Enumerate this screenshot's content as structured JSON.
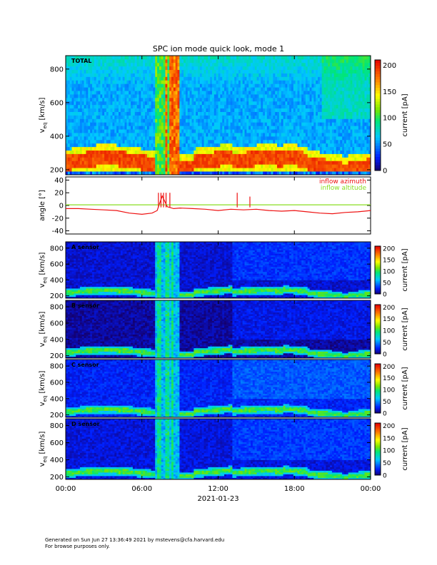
{
  "chart_data": [
    {
      "type": "heatmap",
      "title": "SPC ion mode quick look, mode 1",
      "panel_label": "TOTAL",
      "ylabel_main": "v",
      "ylabel_sub": "eq",
      "ylabel_unit": "[km/s]",
      "yticks": [
        200,
        400,
        600,
        800
      ],
      "ylim": [
        170,
        880
      ],
      "colorbar": {
        "label": "current [pA]",
        "ticks": [
          0,
          50,
          100,
          150,
          200
        ],
        "range": [
          0,
          210
        ]
      },
      "x_range_hours": [
        0,
        24
      ]
    },
    {
      "type": "line",
      "ylabel": "angle [°]",
      "yticks": [
        -40,
        -20,
        0,
        20,
        40
      ],
      "ylim": [
        -45,
        45
      ],
      "legend_placement": "top-right",
      "series": [
        {
          "name": "inflow azimuth",
          "color": "#ee1111",
          "x_hours": [
            0,
            1,
            2,
            3,
            4,
            5,
            6,
            6.8,
            7.2,
            7.6,
            8.0,
            8.5,
            9,
            10,
            11,
            12,
            13,
            14,
            15,
            16,
            17,
            18,
            19,
            20,
            21,
            22,
            23,
            24
          ],
          "y": [
            -5,
            -5,
            -6,
            -7,
            -8,
            -12,
            -14,
            -12,
            -8,
            15,
            -2,
            -5,
            -4,
            -5,
            -6,
            -8,
            -6,
            -7,
            -6,
            -8,
            -9,
            -8,
            -10,
            -12,
            -13,
            -11,
            -10,
            -8
          ]
        },
        {
          "name": "inflow altitude",
          "color": "#88dd22",
          "x_hours": [
            0,
            24
          ],
          "y": [
            1,
            1
          ]
        }
      ]
    },
    {
      "type": "heatmap",
      "panel_label": "A sensor",
      "ylabel_main": "v",
      "ylabel_sub": "eq",
      "ylabel_unit": "[km/s]",
      "yticks": [
        200,
        400,
        600,
        800
      ],
      "ylim": [
        170,
        880
      ],
      "colorbar": {
        "label": "current [pA]",
        "ticks": [
          0,
          50,
          100,
          150,
          200
        ],
        "range": [
          0,
          210
        ]
      }
    },
    {
      "type": "heatmap",
      "panel_label": "B sensor",
      "ylabel_main": "v",
      "ylabel_sub": "eq",
      "ylabel_unit": "[km/s]",
      "yticks": [
        200,
        400,
        600,
        800
      ],
      "ylim": [
        170,
        880
      ],
      "colorbar": {
        "label": "current [pA]",
        "ticks": [
          0,
          50,
          100,
          150,
          200
        ],
        "range": [
          0,
          210
        ]
      }
    },
    {
      "type": "heatmap",
      "panel_label": "C sensor",
      "ylabel_main": "v",
      "ylabel_sub": "eq",
      "ylabel_unit": "[km/s]",
      "yticks": [
        200,
        400,
        600,
        800
      ],
      "ylim": [
        170,
        880
      ],
      "colorbar": {
        "label": "current [pA]",
        "ticks": [
          0,
          50,
          100,
          150,
          200
        ],
        "range": [
          0,
          210
        ]
      }
    },
    {
      "type": "heatmap",
      "panel_label": "D sensor",
      "ylabel_main": "v",
      "ylabel_sub": "eq",
      "ylabel_unit": "[km/s]",
      "yticks": [
        200,
        400,
        600,
        800
      ],
      "ylim": [
        170,
        880
      ],
      "colorbar": {
        "label": "current [pA]",
        "ticks": [
          0,
          50,
          100,
          150,
          200
        ],
        "range": [
          0,
          210
        ]
      },
      "xticks": [
        "00:00",
        "06:00",
        "12:00",
        "18:00",
        "00:00"
      ],
      "xlabel": "2021-01-23"
    }
  ],
  "footer": {
    "line1": "Generated on Sun Jun 27 13:36:49 2021 by mstevens@cfa.harvard.edu",
    "line2": "For browse purposes only."
  }
}
